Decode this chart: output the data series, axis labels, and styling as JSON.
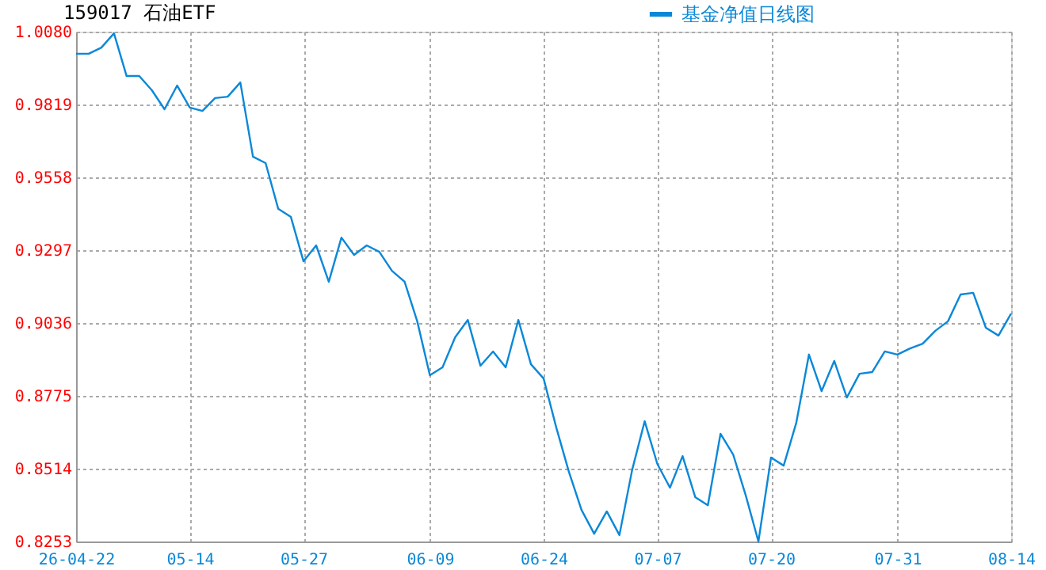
{
  "chart_data": {
    "type": "line",
    "title": "159017 石油ETF",
    "categories": [
      "26-04-22",
      null,
      null,
      null,
      null,
      null,
      null,
      null,
      null,
      "05-14",
      null,
      null,
      null,
      null,
      null,
      null,
      null,
      null,
      "05-27",
      null,
      null,
      null,
      null,
      null,
      null,
      null,
      null,
      null,
      "06-09",
      null,
      null,
      null,
      null,
      null,
      null,
      null,
      null,
      "06-24",
      null,
      null,
      null,
      null,
      null,
      null,
      null,
      null,
      "07-07",
      null,
      null,
      null,
      null,
      null,
      null,
      null,
      null,
      "07-20",
      null,
      null,
      null,
      null,
      null,
      null,
      null,
      null,
      null,
      "07-31",
      null,
      null,
      null,
      null,
      null,
      null,
      null,
      null,
      "08-14"
    ],
    "series": [
      {
        "name": "基金净值日线图",
        "color": "#0a88d8",
        "values": [
          1.0001,
          1.0001,
          1.0023,
          1.0074,
          0.9921,
          0.9921,
          0.987,
          0.9802,
          0.9887,
          0.9808,
          0.9796,
          0.9842,
          0.9847,
          0.9898,
          0.9632,
          0.9609,
          0.9445,
          0.9416,
          0.9257,
          0.9314,
          0.9184,
          0.9342,
          0.928,
          0.9314,
          0.9291,
          0.9223,
          0.9184,
          0.9042,
          0.8849,
          0.8877,
          0.8985,
          0.9047,
          0.8883,
          0.8934,
          0.8877,
          0.9047,
          0.8888,
          0.8837,
          0.8662,
          0.8503,
          0.8366,
          0.8281,
          0.8361,
          0.8276,
          0.8508,
          0.8684,
          0.8531,
          0.8446,
          0.8559,
          0.8412,
          0.8383,
          0.8639,
          0.8565,
          0.8418,
          0.8253,
          0.8554,
          0.8525,
          0.8679,
          0.8923,
          0.8792,
          0.89,
          0.8769,
          0.8854,
          0.886,
          0.8934,
          0.8923,
          0.8945,
          0.8962,
          0.9008,
          0.9042,
          0.9138,
          0.9144,
          0.9019,
          0.8991,
          0.907
        ]
      }
    ],
    "ylim": [
      0.8253,
      1.008
    ],
    "yticks": [
      0.8253,
      0.8514,
      0.8775,
      0.9036,
      0.9297,
      0.9558,
      0.9819,
      {
        "value": 1.008,
        "label": "1.0080"
      }
    ],
    "grid": true,
    "legend": "top right",
    "marker": "none",
    "line_style": "solid"
  }
}
